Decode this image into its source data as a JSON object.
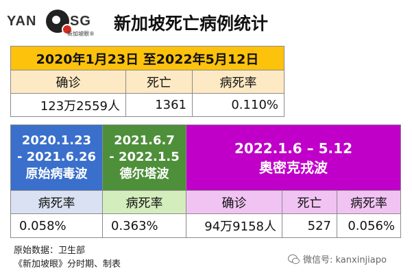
{
  "header": {
    "logo_left": "YAN",
    "logo_right": "SG",
    "logo_sub": "新加坡眼®",
    "title": "新加坡死亡病例统计"
  },
  "overall": {
    "date_range": "2020年1月23日 至2022年5月12日",
    "headers": [
      "确诊",
      "死亡",
      "病死率"
    ],
    "values": [
      "123万2559人",
      "1361",
      "0.110%"
    ]
  },
  "waves": {
    "original": {
      "line1": "2020.1.23",
      "line2": "- 2021.6.26",
      "name": "原始病毒波",
      "rate_label": "病死率",
      "rate_value": "0.058%"
    },
    "delta": {
      "line1": "2021.6.7",
      "line2": "- 2022.1.5",
      "name": "德尔塔波",
      "rate_label": "病死率",
      "rate_value": "0.363%"
    },
    "omicron": {
      "line1": "2022.1.6 – 5.12",
      "name": "奥密克戎波",
      "headers": [
        "确诊",
        "死亡",
        "病死率"
      ],
      "values": [
        "94万9158人",
        "527",
        "0.056%"
      ]
    }
  },
  "footer": {
    "source": "原始数据：卫生部",
    "credit": "《新加坡眼》分时期、制表",
    "wechat": "微信号: kanxinjiapo"
  },
  "colors": {
    "orange": "#fdc20c",
    "orange_light": "#fde9c4",
    "blue": "#3a6fcc",
    "blue_light": "#d9e1f2",
    "green": "#4e8f3a",
    "green_light": "#d4edbd",
    "purple": "#c000c8",
    "purple_light": "#f1c3f3"
  }
}
